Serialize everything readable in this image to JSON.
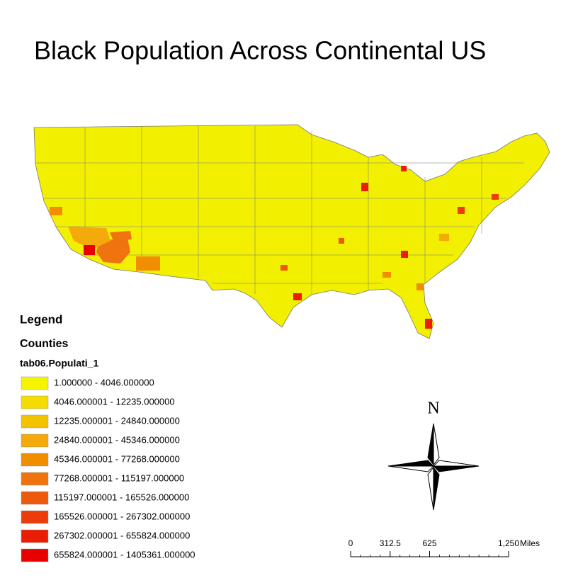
{
  "title": "Black Population Across Continental US",
  "legend": {
    "heading": "Legend",
    "layer": "Counties",
    "field": "tab06.Populati_1",
    "classes": [
      {
        "label": "1.000000 - 4046.000000",
        "color": "#f5f500"
      },
      {
        "label": "4046.000001 - 12235.000000",
        "color": "#f5dc00"
      },
      {
        "label": "12235.000001 - 24840.000000",
        "color": "#f4c300"
      },
      {
        "label": "24840.000001 - 45346.000000",
        "color": "#f3aa0a"
      },
      {
        "label": "45346.000001 - 77268.000000",
        "color": "#f18e00"
      },
      {
        "label": "77268.000001 - 115197.000000",
        "color": "#ef7410"
      },
      {
        "label": "115197.000001 - 165526.000000",
        "color": "#ed5a0a"
      },
      {
        "label": "165526.000001 - 267302.000000",
        "color": "#eb3c0a"
      },
      {
        "label": "267302.000001 - 655824.000000",
        "color": "#e91e05"
      },
      {
        "label": "655824.000001 - 1405361.000000",
        "color": "#e80000"
      }
    ]
  },
  "north_arrow": {
    "label": "N"
  },
  "scale_bar": {
    "unit": "Miles",
    "range": [
      0,
      1250
    ],
    "ticks": [
      0,
      312.5,
      625,
      {
        "value": 1250,
        "label": "1,250"
      }
    ]
  }
}
